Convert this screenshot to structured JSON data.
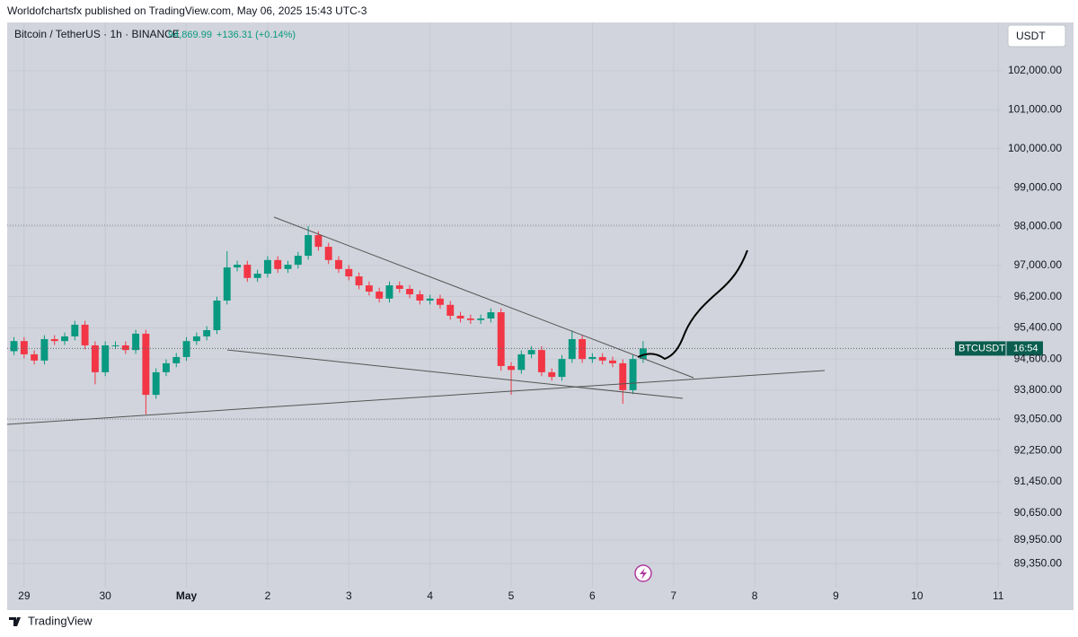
{
  "page": {
    "publisher": "Worldofchartsfx published on TradingView.com, May 06, 2025 15:43 UTC-3",
    "symbol": "Bitcoin / TetherUS · 1h · BINANCE",
    "price": "94,869.99",
    "change": "+136.31 (+0.14%)",
    "currency": "USDT",
    "badge_symbol": "BTCUSDT",
    "badge_timer": "16:54",
    "brand": "TradingView"
  },
  "chart_data": {
    "type": "candlestick",
    "up_color": "#089981",
    "down_color": "#f23645",
    "grid": true,
    "x": [
      -3,
      0,
      3,
      6,
      9,
      12,
      15,
      18,
      21,
      24,
      27,
      30,
      33,
      36,
      39,
      42,
      45,
      48,
      51,
      54,
      57,
      60,
      63,
      66,
      69,
      72,
      75,
      78,
      81,
      84,
      87,
      90,
      93,
      96,
      99,
      102,
      105,
      108,
      111,
      114,
      117,
      120,
      123,
      126,
      129,
      132,
      135,
      138,
      141,
      144,
      147,
      150,
      153,
      156,
      159,
      162,
      165,
      168,
      171,
      174,
      177,
      180,
      183
    ],
    "open": [
      94800,
      95060,
      94720,
      94560,
      95110,
      95060,
      95180,
      95480,
      94950,
      94260,
      94950,
      94950,
      94830,
      95250,
      93680,
      94260,
      94490,
      94650,
      95060,
      95180,
      95340,
      96100,
      96950,
      97020,
      96680,
      96790,
      97140,
      96910,
      97020,
      97250,
      97780,
      97480,
      97140,
      96910,
      96720,
      96490,
      96330,
      96150,
      96490,
      96400,
      96260,
      96100,
      96150,
      95990,
      95710,
      95640,
      95600,
      95640,
      95800,
      94420,
      94320,
      94720,
      94830,
      94260,
      94140,
      94600,
      95110,
      94600,
      94650,
      94560,
      94490,
      93800,
      94600
    ],
    "high": [
      95160,
      95160,
      94820,
      95210,
      95210,
      95280,
      95580,
      95580,
      95050,
      95050,
      95050,
      95050,
      95350,
      95350,
      94360,
      94590,
      94750,
      95160,
      95280,
      95440,
      96200,
      97370,
      97120,
      97120,
      96890,
      97240,
      97240,
      97120,
      97350,
      98010,
      97880,
      97580,
      97240,
      97010,
      96820,
      96590,
      96430,
      96590,
      96590,
      96500,
      96360,
      96250,
      96250,
      96090,
      95810,
      95740,
      95740,
      95900,
      95900,
      94520,
      94820,
      94930,
      94930,
      94360,
      94700,
      95330,
      95210,
      94750,
      94750,
      94660,
      94590,
      94700,
      95060
    ],
    "low": [
      94700,
      94620,
      94460,
      94460,
      94960,
      94960,
      95080,
      94850,
      93950,
      94160,
      94850,
      94730,
      94730,
      93180,
      93580,
      94160,
      94390,
      94550,
      94960,
      95080,
      95240,
      96000,
      96850,
      96580,
      96580,
      96690,
      96810,
      96810,
      96920,
      97150,
      97380,
      97040,
      96810,
      96620,
      96390,
      96230,
      96050,
      96050,
      96300,
      96160,
      96000,
      96000,
      95890,
      95610,
      95540,
      95500,
      95500,
      95540,
      94300,
      93680,
      94220,
      94620,
      94160,
      94040,
      94040,
      94500,
      94500,
      94500,
      94460,
      94390,
      93450,
      93700,
      94500
    ],
    "close": [
      95060,
      94720,
      94560,
      95110,
      95060,
      95180,
      95480,
      94950,
      94260,
      94950,
      94950,
      94830,
      95250,
      93680,
      94260,
      94490,
      94650,
      95060,
      95180,
      95340,
      96100,
      96950,
      97020,
      96680,
      96790,
      97140,
      96910,
      97020,
      97250,
      97780,
      97480,
      97140,
      96910,
      96720,
      96490,
      96330,
      96150,
      96490,
      96400,
      96260,
      96100,
      96150,
      95990,
      95710,
      95640,
      95600,
      95640,
      95800,
      94420,
      94320,
      94720,
      94830,
      94260,
      94140,
      94600,
      95110,
      94600,
      94650,
      94560,
      94490,
      93800,
      94600,
      94870
    ],
    "xlim": [
      -5,
      289
    ],
    "xticks": [
      {
        "value": 0,
        "label": "29"
      },
      {
        "value": 24,
        "label": "30"
      },
      {
        "value": 48,
        "label": "May"
      },
      {
        "value": 72,
        "label": "2"
      },
      {
        "value": 96,
        "label": "3"
      },
      {
        "value": 120,
        "label": "4"
      },
      {
        "value": 144,
        "label": "5"
      },
      {
        "value": 168,
        "label": "6"
      },
      {
        "value": 192,
        "label": "7"
      },
      {
        "value": 216,
        "label": "8"
      },
      {
        "value": 240,
        "label": "9"
      },
      {
        "value": 264,
        "label": "10"
      },
      {
        "value": 288,
        "label": "11"
      }
    ],
    "ylim": [
      88730,
      103240
    ],
    "yticks": [
      {
        "value": 102000,
        "label": "102,000.00"
      },
      {
        "value": 101000,
        "label": "101,000.00"
      },
      {
        "value": 100000,
        "label": "100,000.00"
      },
      {
        "value": 99000,
        "label": "99,000.00"
      },
      {
        "value": 98000,
        "label": "98,000.00"
      },
      {
        "value": 97000,
        "label": "97,000.00"
      },
      {
        "value": 96200,
        "label": "96,200.00"
      },
      {
        "value": 95400,
        "label": "95,400.00"
      },
      {
        "value": 94600,
        "label": "94,600.00"
      },
      {
        "value": 93800,
        "label": "93,800.00"
      },
      {
        "value": 93050,
        "label": "93,050.00"
      },
      {
        "value": 92250,
        "label": "92,250.00"
      },
      {
        "value": 91450,
        "label": "91,450.00"
      },
      {
        "value": 90650,
        "label": "90,650.00"
      },
      {
        "value": 89950,
        "label": "89,950.00"
      },
      {
        "value": 89350,
        "label": "89,350.00"
      }
    ]
  }
}
